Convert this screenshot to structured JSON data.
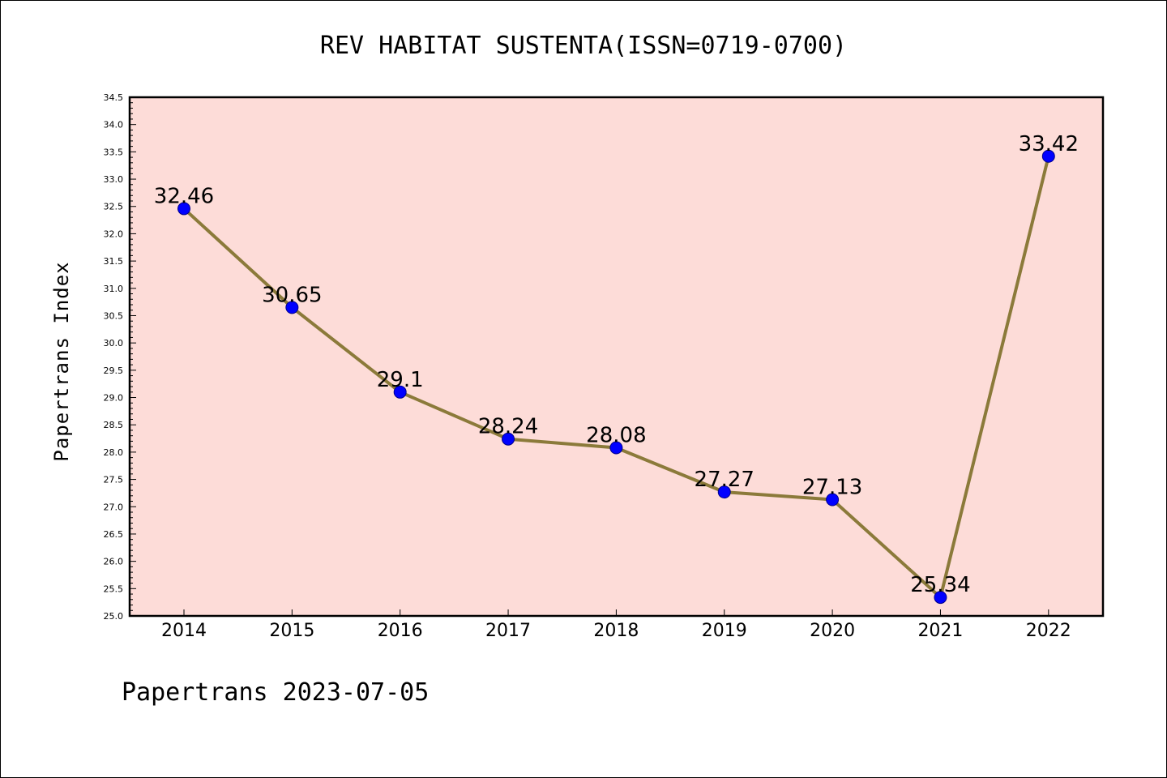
{
  "chart_data": {
    "type": "line",
    "title": "REV HABITAT SUSTENTA(ISSN=0719-0700)",
    "xlabel": "",
    "ylabel": "Papertrans Index",
    "footer": "Papertrans 2023-07-05",
    "categories": [
      "2014",
      "2015",
      "2016",
      "2017",
      "2018",
      "2019",
      "2020",
      "2021",
      "2022"
    ],
    "series": [
      {
        "name": "Papertrans Index",
        "values": [
          32.46,
          30.65,
          29.1,
          28.24,
          28.08,
          27.27,
          27.13,
          25.34,
          33.42
        ],
        "labels": [
          "32.46",
          "30.65",
          "29.1",
          "28.24",
          "28.08",
          "27.27",
          "27.13",
          "25.34",
          "33.42"
        ]
      }
    ],
    "ylim": [
      25.0,
      34.5
    ],
    "yticks": [
      "25.0",
      "25.5",
      "26.0",
      "26.5",
      "27.0",
      "27.5",
      "28.0",
      "28.5",
      "29.0",
      "29.5",
      "30.0",
      "30.5",
      "31.0",
      "31.5",
      "32.0",
      "32.5",
      "33.0",
      "33.5",
      "34.0",
      "34.5"
    ],
    "grid": false,
    "colors": {
      "plot_background": "#fddcd8",
      "line": "#8b7a3a",
      "marker_fill": "#0000ff",
      "marker_stroke": "#00008b"
    }
  }
}
